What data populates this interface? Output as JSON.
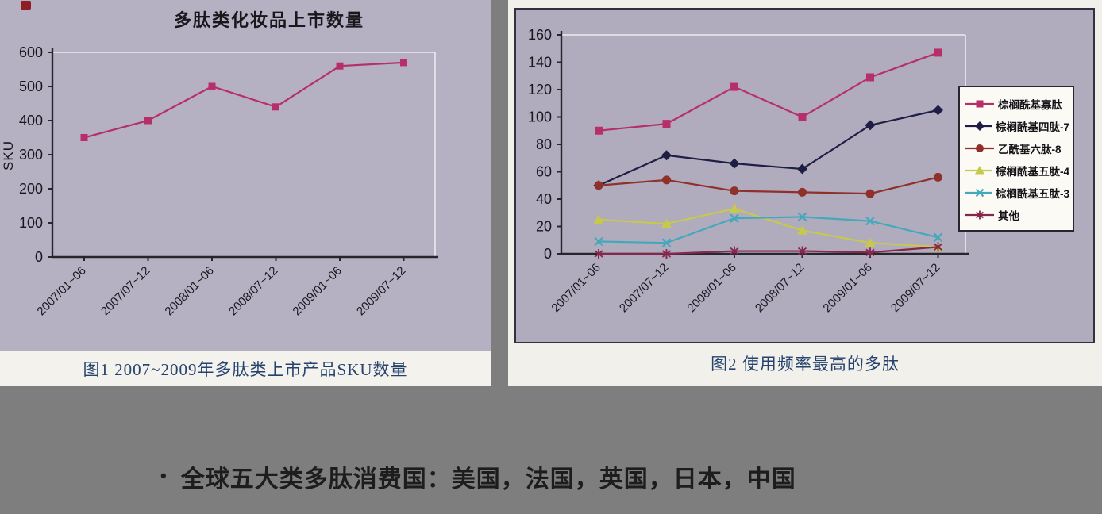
{
  "figure1": {
    "title": "多肽类化妆品上市数量",
    "caption": "图1 2007~2009年多肽类上市产品SKU数量",
    "ylabel": "SKU"
  },
  "figure2": {
    "caption": "图2 使用频率最高的多肽"
  },
  "bullet": {
    "marker": "•",
    "text": "全球五大类多肽消费国：美国，法国，英国，日本，中国"
  },
  "colors": {
    "page_background": "#7e7e7e",
    "chart_background": "#b4aec1",
    "paper": "#f2f1eb",
    "axis": "#26262c",
    "gridline": "#eceaf0",
    "caption_text": "#26436f",
    "series_pink": "#b72f68",
    "series_navy": "#1e1e44",
    "series_darkred": "#90302a",
    "series_yellowgreen": "#c6c94b",
    "series_cyan": "#44a8bd",
    "series_maroon": "#86284e"
  },
  "chart_data": [
    {
      "type": "line",
      "title": "多肽类化妆品上市数量",
      "caption": "图1 2007~2009年多肽类上市产品SKU数量",
      "xlabel": "",
      "ylabel": "SKU",
      "ylim": [
        0,
        600
      ],
      "ytick_step": 100,
      "grid": false,
      "legend_position": "none",
      "categories": [
        "2007/01~06",
        "2007/07~12",
        "2008/01~06",
        "2008/07~12",
        "2009/01~06",
        "2009/07~12"
      ],
      "series": [
        {
          "name": "SKU数量",
          "color": "#b72f68",
          "marker": "square",
          "values": [
            350,
            400,
            500,
            440,
            560,
            570
          ]
        }
      ]
    },
    {
      "type": "line",
      "title": "",
      "caption": "图2 使用频率最高的多肽",
      "xlabel": "",
      "ylabel": "",
      "ylim": [
        0,
        160
      ],
      "ytick_step": 20,
      "grid": false,
      "legend_position": "right",
      "categories": [
        "2007/01~06",
        "2007/07~12",
        "2008/01~06",
        "2008/07~12",
        "2009/01~06",
        "2009/07~12"
      ],
      "series": [
        {
          "name": "棕榈酰基寡肽",
          "color": "#b72f68",
          "marker": "square",
          "values": [
            90,
            95,
            122,
            100,
            129,
            147
          ]
        },
        {
          "name": "棕榈酰基四肽-7",
          "color": "#1e1e44",
          "marker": "diamond",
          "values": [
            50,
            72,
            66,
            62,
            94,
            105
          ]
        },
        {
          "name": "乙酰基六肽-8",
          "color": "#90302a",
          "marker": "circle",
          "values": [
            50,
            54,
            46,
            45,
            44,
            56
          ]
        },
        {
          "name": "棕榈酰基五肽-4",
          "color": "#c6c94b",
          "marker": "triangle",
          "values": [
            25,
            22,
            33,
            17,
            8,
            5
          ]
        },
        {
          "name": "棕榈酰基五肽-3",
          "color": "#44a8bd",
          "marker": "x",
          "values": [
            9,
            8,
            26,
            27,
            24,
            12
          ]
        },
        {
          "name": "其他",
          "color": "#86284e",
          "marker": "asterisk",
          "values": [
            0,
            0,
            2,
            2,
            1,
            5
          ]
        }
      ]
    }
  ]
}
